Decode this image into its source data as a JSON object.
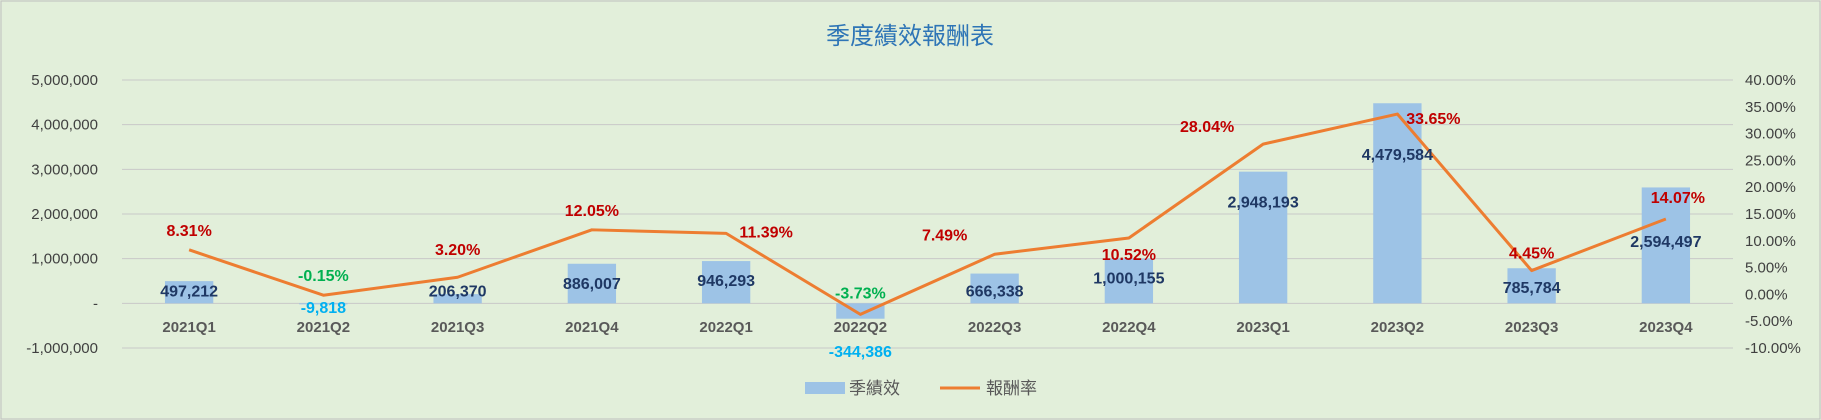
{
  "chart_data": {
    "type": "bar+line",
    "title": "季度績效報酬表",
    "categories": [
      "2021Q1",
      "2021Q2",
      "2021Q3",
      "2021Q4",
      "2022Q1",
      "2022Q2",
      "2022Q3",
      "2022Q4",
      "2023Q1",
      "2023Q2",
      "2023Q3",
      "2023Q4"
    ],
    "series": [
      {
        "name": "季績效",
        "type": "bar",
        "axis": "left",
        "values": [
          497212,
          -9818,
          206370,
          886007,
          946293,
          -344386,
          666338,
          1000155,
          2948193,
          4479584,
          785784,
          2594497
        ],
        "labels": [
          "497,212",
          "-9,818",
          "206,370",
          "886,007",
          "946,293",
          "-344,386",
          "666,338",
          "1,000,155",
          "2,948,193",
          "4,479,584",
          "785,784",
          "2,594,497"
        ]
      },
      {
        "name": "報酬率",
        "type": "line",
        "axis": "right",
        "values": [
          8.31,
          -0.15,
          3.2,
          12.05,
          11.39,
          -3.73,
          7.49,
          10.52,
          28.04,
          33.65,
          4.45,
          14.07
        ],
        "labels": [
          "8.31%",
          "-0.15%",
          "3.20%",
          "12.05%",
          "11.39%",
          "-3.73%",
          "7.49%",
          "10.52%",
          "28.04%",
          "33.65%",
          "4.45%",
          "14.07%"
        ]
      }
    ],
    "y_left": {
      "range": [
        -1000000,
        5000000
      ],
      "ticks": [
        5000000,
        4000000,
        3000000,
        2000000,
        1000000,
        0,
        -1000000
      ],
      "tick_labels": [
        "5,000,000",
        "4,000,000",
        "3,000,000",
        "2,000,000",
        "1,000,000",
        "-",
        "-1,000,000"
      ]
    },
    "y_right": {
      "range": [
        -10,
        40
      ],
      "ticks": [
        40,
        35,
        30,
        25,
        20,
        15,
        10,
        5,
        0,
        -5,
        -10
      ],
      "tick_labels": [
        "40.00%",
        "35.00%",
        "30.00%",
        "25.00%",
        "20.00%",
        "15.00%",
        "10.00%",
        "5.00%",
        "0.00%",
        "-5.00%",
        "-10.00%"
      ]
    },
    "grid": true,
    "legend": "bottom-center",
    "colors": {
      "bar": "#9dc3e6",
      "line": "#ed7d31",
      "title": "#2e75b6",
      "label_positive": "#c00000",
      "label_negative": "#00b050",
      "bar_label_dark": "#1f3864",
      "bar_label_negative": "#00b0f0",
      "gridline": "#c8c8c8",
      "background": "#e2efda"
    }
  }
}
